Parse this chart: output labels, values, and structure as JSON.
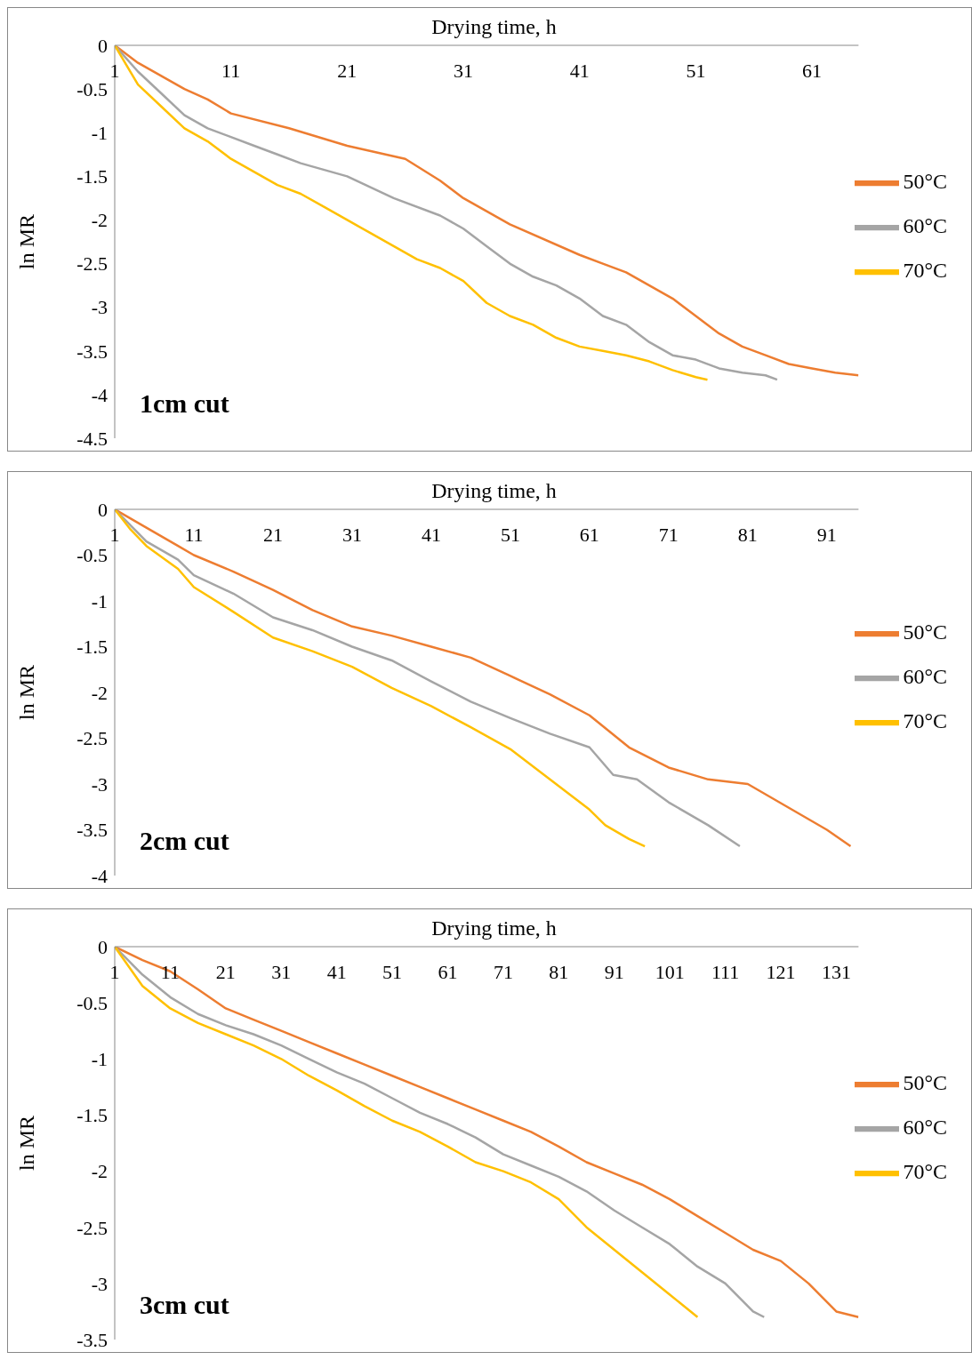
{
  "chart_data": [
    {
      "type": "line",
      "xlabel": "Drying time, h",
      "ylabel": "ln MR",
      "xlim": [
        1,
        65
      ],
      "xticks": [
        1,
        11,
        21,
        31,
        41,
        51,
        61
      ],
      "ylim": [
        -4.5,
        0
      ],
      "yticks": [
        0,
        -0.5,
        -1,
        -1.5,
        -2,
        -2.5,
        -3,
        -3.5,
        -4,
        -4.5
      ],
      "grid": false,
      "legend": "right",
      "marker": "none",
      "line_style": "solid",
      "annotations": [
        "1cm cut"
      ],
      "series": [
        {
          "name": "50°C",
          "color": "#ed7d31",
          "x": [
            1,
            3,
            5,
            7,
            9,
            11,
            16,
            21,
            26,
            29,
            31,
            33,
            35,
            41,
            43,
            45,
            47,
            49,
            51,
            53,
            55,
            57,
            59,
            61,
            63,
            65
          ],
          "values": [
            0,
            -0.2,
            -0.35,
            -0.5,
            -0.62,
            -0.78,
            -0.95,
            -1.15,
            -1.3,
            -1.55,
            -1.75,
            -1.9,
            -2.05,
            -2.4,
            -2.5,
            -2.6,
            -2.75,
            -2.9,
            -3.1,
            -3.3,
            -3.45,
            -3.55,
            -3.65,
            -3.7,
            -3.75,
            -3.78
          ]
        },
        {
          "name": "60°C",
          "color": "#a5a5a5",
          "x": [
            1,
            3,
            5,
            7,
            9,
            11,
            13,
            15,
            17,
            21,
            25,
            29,
            31,
            33,
            35,
            37,
            39,
            41,
            43,
            45,
            47,
            49,
            51,
            53,
            55,
            57,
            58
          ],
          "values": [
            0,
            -0.3,
            -0.55,
            -0.8,
            -0.95,
            -1.05,
            -1.15,
            -1.25,
            -1.35,
            -1.5,
            -1.75,
            -1.95,
            -2.1,
            -2.3,
            -2.5,
            -2.65,
            -2.75,
            -2.9,
            -3.1,
            -3.2,
            -3.4,
            -3.55,
            -3.6,
            -3.7,
            -3.75,
            -3.78,
            -3.83
          ]
        },
        {
          "name": "70°C",
          "color": "#ffc000",
          "x": [
            1,
            3,
            5,
            7,
            9,
            11,
            13,
            15,
            17,
            19,
            21,
            23,
            25,
            27,
            29,
            31,
            33,
            35,
            37,
            39,
            41,
            43,
            45,
            47,
            49,
            51,
            52
          ],
          "values": [
            0,
            -0.45,
            -0.7,
            -0.95,
            -1.1,
            -1.3,
            -1.45,
            -1.6,
            -1.7,
            -1.85,
            -2.0,
            -2.15,
            -2.3,
            -2.45,
            -2.55,
            -2.7,
            -2.95,
            -3.1,
            -3.2,
            -3.35,
            -3.45,
            -3.5,
            -3.55,
            -3.62,
            -3.72,
            -3.8,
            -3.83
          ]
        }
      ]
    },
    {
      "type": "line",
      "xlabel": "Drying time, h",
      "ylabel": "ln MR",
      "xlim": [
        1,
        95
      ],
      "xticks": [
        1,
        11,
        21,
        31,
        41,
        51,
        61,
        71,
        81,
        91
      ],
      "ylim": [
        -4,
        0
      ],
      "yticks": [
        0,
        -0.5,
        -1,
        -1.5,
        -2,
        -2.5,
        -3,
        -3.5,
        -4
      ],
      "grid": false,
      "legend": "right",
      "marker": "none",
      "line_style": "solid",
      "annotations": [
        "2cm cut"
      ],
      "series": [
        {
          "name": "50°C",
          "color": "#ed7d31",
          "x": [
            1,
            5,
            9,
            11,
            16,
            21,
            26,
            31,
            36,
            41,
            46,
            51,
            56,
            61,
            66,
            71,
            76,
            81,
            86,
            91,
            94
          ],
          "values": [
            0,
            -0.2,
            -0.4,
            -0.5,
            -0.68,
            -0.88,
            -1.1,
            -1.28,
            -1.38,
            -1.5,
            -1.62,
            -1.82,
            -2.02,
            -2.25,
            -2.6,
            -2.82,
            -2.95,
            -3.0,
            -3.25,
            -3.5,
            -3.68
          ]
        },
        {
          "name": "60°C",
          "color": "#a5a5a5",
          "x": [
            1,
            5,
            9,
            11,
            16,
            21,
            26,
            31,
            36,
            41,
            46,
            51,
            56,
            61,
            64,
            67,
            71,
            76,
            80
          ],
          "values": [
            0,
            -0.35,
            -0.55,
            -0.72,
            -0.92,
            -1.18,
            -1.32,
            -1.5,
            -1.65,
            -1.88,
            -2.1,
            -2.28,
            -2.45,
            -2.6,
            -2.9,
            -2.95,
            -3.2,
            -3.45,
            -3.68
          ]
        },
        {
          "name": "70°C",
          "color": "#ffc000",
          "x": [
            1,
            3,
            5,
            9,
            11,
            16,
            21,
            26,
            31,
            36,
            41,
            46,
            51,
            56,
            61,
            63,
            66,
            68
          ],
          "values": [
            0,
            -0.22,
            -0.4,
            -0.65,
            -0.85,
            -1.12,
            -1.4,
            -1.55,
            -1.72,
            -1.95,
            -2.15,
            -2.38,
            -2.62,
            -2.95,
            -3.28,
            -3.45,
            -3.6,
            -3.68
          ]
        }
      ]
    },
    {
      "type": "line",
      "xlabel": "Drying time, h",
      "ylabel": "ln MR",
      "xlim": [
        1,
        135
      ],
      "xticks": [
        1,
        11,
        21,
        31,
        41,
        51,
        61,
        71,
        81,
        91,
        101,
        111,
        121,
        131
      ],
      "ylim": [
        -3.5,
        0
      ],
      "yticks": [
        0,
        -0.5,
        -1,
        -1.5,
        -2,
        -2.5,
        -3,
        -3.5
      ],
      "grid": false,
      "legend": "right",
      "marker": "none",
      "line_style": "solid",
      "annotations": [
        "3cm cut"
      ],
      "series": [
        {
          "name": "50°C",
          "color": "#ed7d31",
          "x": [
            1,
            6,
            11,
            16,
            21,
            26,
            31,
            36,
            41,
            46,
            51,
            56,
            61,
            66,
            71,
            76,
            81,
            86,
            91,
            96,
            101,
            106,
            111,
            116,
            121,
            126,
            131,
            135
          ],
          "values": [
            0,
            -0.12,
            -0.22,
            -0.38,
            -0.55,
            -0.65,
            -0.75,
            -0.85,
            -0.95,
            -1.05,
            -1.15,
            -1.25,
            -1.35,
            -1.45,
            -1.55,
            -1.65,
            -1.78,
            -1.92,
            -2.02,
            -2.12,
            -2.25,
            -2.4,
            -2.55,
            -2.7,
            -2.8,
            -3.0,
            -3.25,
            -3.3
          ]
        },
        {
          "name": "60°C",
          "color": "#a5a5a5",
          "x": [
            1,
            6,
            11,
            16,
            21,
            26,
            31,
            36,
            41,
            46,
            51,
            56,
            61,
            66,
            71,
            76,
            81,
            86,
            91,
            96,
            101,
            106,
            111,
            116,
            118
          ],
          "values": [
            0,
            -0.25,
            -0.45,
            -0.6,
            -0.7,
            -0.78,
            -0.88,
            -1.0,
            -1.12,
            -1.22,
            -1.35,
            -1.48,
            -1.58,
            -1.7,
            -1.85,
            -1.95,
            -2.05,
            -2.18,
            -2.35,
            -2.5,
            -2.65,
            -2.85,
            -3.0,
            -3.25,
            -3.3
          ]
        },
        {
          "name": "70°C",
          "color": "#ffc000",
          "x": [
            1,
            6,
            11,
            16,
            21,
            26,
            31,
            36,
            41,
            46,
            51,
            56,
            61,
            66,
            71,
            76,
            81,
            86,
            91,
            96,
            101,
            106
          ],
          "values": [
            0,
            -0.35,
            -0.55,
            -0.68,
            -0.78,
            -0.88,
            -1.0,
            -1.15,
            -1.28,
            -1.42,
            -1.55,
            -1.65,
            -1.78,
            -1.92,
            -2.0,
            -2.1,
            -2.25,
            -2.5,
            -2.7,
            -2.9,
            -3.1,
            -3.3
          ]
        }
      ]
    }
  ]
}
